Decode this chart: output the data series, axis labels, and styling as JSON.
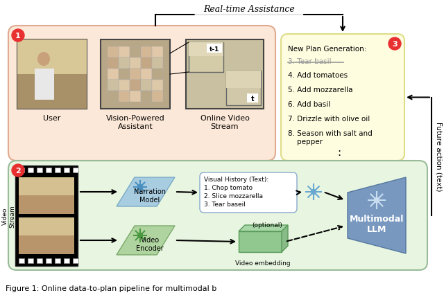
{
  "bg_color": "#ffffff",
  "top_left_box_color": "#fce8d8",
  "top_right_box_color": "#fefde0",
  "bottom_box_color": "#e8f5e0",
  "circle_red": "#e83030",
  "real_time_arrow_label": "Real-time Assistance",
  "future_action_label": "Future action (text)",
  "num1_label": "1",
  "num2_label": "2",
  "num3_label": "3",
  "user_label": "User",
  "assistant_label": "Vision-Powered\nAssistant",
  "stream_label": "Online Video\nStream",
  "video_stream_label": "Video\nStream",
  "narration_label": "Narration\nModel",
  "video_encoder_label": "Video\nEncoder",
  "visual_history_label": "Visual History (Text):\n1. Chop tomato\n2. Slice mozzarella\n3. Tear baseil",
  "video_embedding_label": "Video embedding",
  "multimodal_label": "Multimodal\nLLM",
  "new_plan_label": "New Plan Generation:",
  "plan_item3": "3. Tear basil",
  "plan_items": [
    "4. Add tomatoes",
    "5. Add mozzarella",
    "6. Add basil",
    "7. Drizzle with olive oil",
    "8. Season with salt and\n    pepper"
  ],
  "plan_dots": ":",
  "t_minus_1": "t-1",
  "t_label": "t",
  "optional_label": "(optional)",
  "caption": "Figure 1: Online data-to-plan pipeline for multimodal b"
}
